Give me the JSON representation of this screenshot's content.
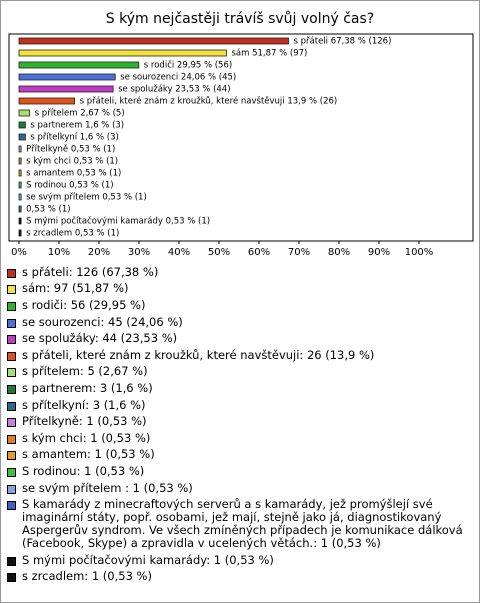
{
  "chart_data": {
    "type": "bar",
    "orientation": "horizontal",
    "title": "S kým nejčastěji trávíš svůj volný čas?",
    "values": [
      67.38,
      51.87,
      29.95,
      24.06,
      23.53,
      13.9,
      2.67,
      1.6,
      1.6,
      0.53,
      0.53,
      0.53,
      0.53,
      0.53,
      0.53,
      0.53,
      0.53
    ],
    "value_labels": [
      "s přáteli 67,38 % (126)",
      "sám 51,87 % (97)",
      "s rodiči 29,95 % (56)",
      "se sourozenci 24,06 % (45)",
      "se spolužáky 23,53 % (44)",
      "s přáteli, které znám z kroužků, které navštěvuji 13,9 % (26)",
      "s přítelem 2,67 % (5)",
      "s partnerem 1,6 % (3)",
      "s přítelkyní 1,6 % (3)",
      "Přítelkyně 0,53 % (1)",
      "s kým chci 0,53 % (1)",
      "s amantem 0,53 % (1)",
      "S rodinou 0,53 % (1)",
      "se svým přítelem  0,53 % (1)",
      "0,53 % (1)",
      "S mými počítačovými kamarády 0,53 % (1)",
      "s zrcadlem 0,53 % (1)"
    ],
    "colors": [
      "#c0301e",
      "#f2e23a",
      "#2cb52c",
      "#4a6fd8",
      "#c03cc0",
      "#e2501c",
      "#a6e070",
      "#1c7a3a",
      "#2a6a8a",
      "#c484e0",
      "#e08020",
      "#e0a020",
      "#40c040",
      "#84a4e4",
      "#4060c0",
      "#111111",
      "#111111"
    ],
    "legend_labels": [
      "s přáteli: 126 (67,38 %)",
      "sám: 97 (51,87 %)",
      "s rodiči: 56 (29,95 %)",
      "se sourozenci: 45 (24,06 %)",
      "se spolužáky: 44 (23,53 %)",
      "s přáteli, které znám z kroužků, které navštěvuji: 26 (13,9 %)",
      "s přítelem: 5 (2,67 %)",
      "s partnerem: 3 (1,6 %)",
      "s přítelkyní: 3 (1,6 %)",
      "Přítelkyně: 1 (0,53 %)",
      "s kým chci: 1 (0,53 %)",
      "s amantem: 1 (0,53 %)",
      "S rodinou: 1 (0,53 %)",
      "se svým přítelem : 1 (0,53 %)",
      "S kamarády z minecraftových serverů a s kamarády, jež promýšlejí své imaginární státy, popř. osobami, jež mají, stejně jako já, diagnostikovaný Aspergerův syndrom. Ve všech zmíněných případech je komunikace dálková (Facebook, Skype) a zpravidla v ucelených větách.: 1 (0,53 %)",
      "S mými počítačovými kamarády: 1 (0,53 %)",
      "s zrcadlem: 1 (0,53 %)"
    ],
    "xlim": [
      0,
      100
    ],
    "xticks": [
      {
        "value": 0,
        "label": "0%"
      },
      {
        "value": 10,
        "label": "10%"
      },
      {
        "value": 20,
        "label": "20%"
      },
      {
        "value": 30,
        "label": "30%"
      },
      {
        "value": 40,
        "label": "40%"
      },
      {
        "value": 50,
        "label": "50%"
      },
      {
        "value": 60,
        "label": "60%"
      },
      {
        "value": 70,
        "label": "70%"
      },
      {
        "value": 80,
        "label": "80%"
      },
      {
        "value": 90,
        "label": "90%"
      },
      {
        "value": 100,
        "label": "100%"
      }
    ]
  }
}
